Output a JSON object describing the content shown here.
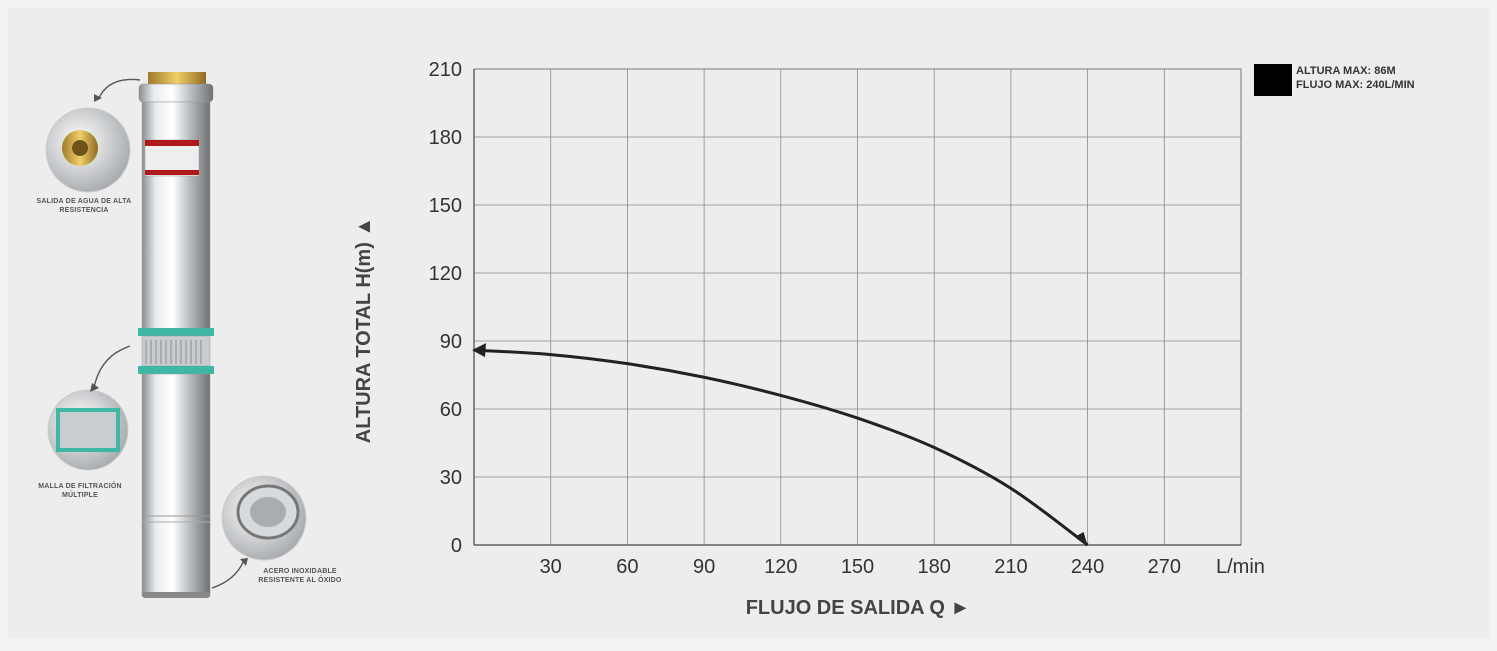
{
  "product": {
    "callouts": [
      "SALIDA DE AGUA DE ALTA RESISTENCIA",
      "MALLA DE FILTRACIÓN MÚLTIPLE",
      "ACERO INOXIDABLE RESISTENTE AL ÓXIDO"
    ]
  },
  "legend": {
    "line1": "ALTURA MAX: 86M",
    "line2": "FLUJO MAX: 240L/MIN",
    "swatch_color": "#000000"
  },
  "chart_data": {
    "type": "line",
    "title": "",
    "xlabel": "FLUJO DE SALIDA Q ►",
    "ylabel": "ALTURA TOTAL H(m) ▲",
    "x_unit": "L/min",
    "xlim": [
      0,
      300
    ],
    "ylim": [
      0,
      210
    ],
    "x_ticks": [
      30,
      60,
      90,
      120,
      150,
      180,
      210,
      240,
      270
    ],
    "y_ticks": [
      0,
      30,
      60,
      90,
      120,
      150,
      180,
      210
    ],
    "grid": true,
    "series": [
      {
        "color": "#222222",
        "x": [
          0,
          30,
          60,
          90,
          120,
          150,
          180,
          210,
          240
        ],
        "y": [
          86,
          84,
          80,
          74,
          66,
          56,
          43,
          25,
          0
        ]
      }
    ]
  }
}
